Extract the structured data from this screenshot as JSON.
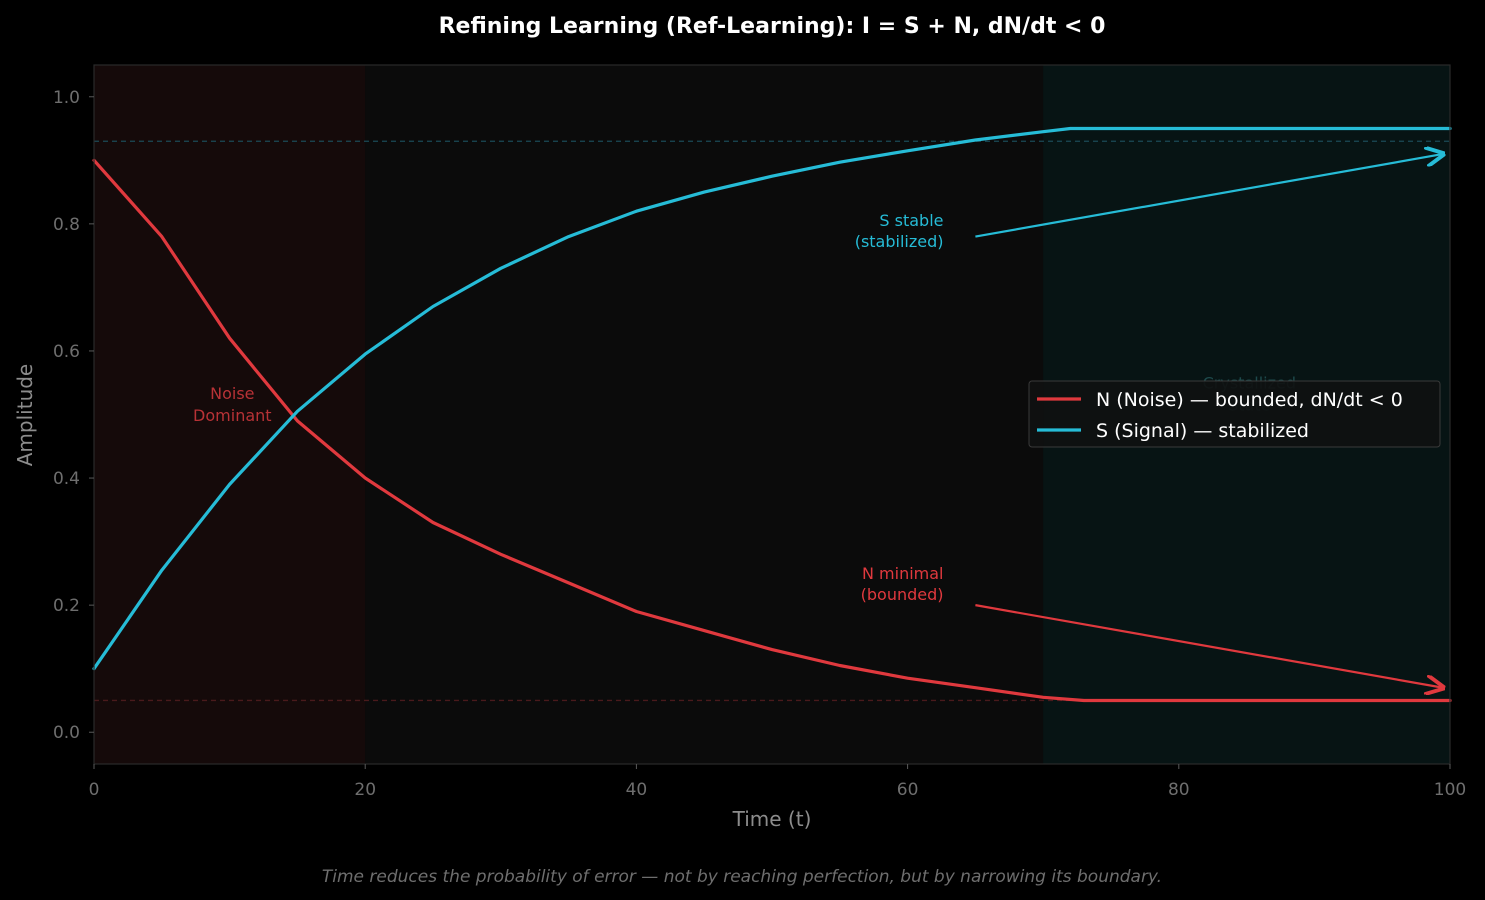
{
  "chart_data": {
    "type": "line",
    "title": "Refining Learning (Ref-Learning): I = S + N, dN/dt < 0",
    "xlabel": "Time (t)",
    "ylabel": "Amplitude",
    "xlim": [
      0,
      100
    ],
    "ylim": [
      -0.05,
      1.05
    ],
    "xticks": [
      0,
      20,
      40,
      60,
      80,
      100
    ],
    "yticks": [
      "0.0",
      "0.2",
      "0.4",
      "0.6",
      "0.8",
      "1.0"
    ],
    "grid": false,
    "legend_position": "center-right",
    "series": [
      {
        "name": "N (Noise) — bounded, dN/dt < 0",
        "color": "#e0393e",
        "x": [
          0,
          5,
          10,
          15,
          20,
          25,
          30,
          35,
          40,
          45,
          50,
          55,
          60,
          65,
          70,
          73,
          80,
          90,
          100
        ],
        "y": [
          0.9,
          0.78,
          0.62,
          0.49,
          0.4,
          0.33,
          0.28,
          0.235,
          0.19,
          0.16,
          0.13,
          0.105,
          0.085,
          0.07,
          0.055,
          0.05,
          0.05,
          0.05,
          0.05
        ]
      },
      {
        "name": "S (Signal) — stabilized",
        "color": "#26bcd7",
        "x": [
          0,
          5,
          10,
          15,
          20,
          25,
          30,
          35,
          40,
          45,
          50,
          55,
          60,
          65,
          70,
          72,
          80,
          90,
          100
        ],
        "y": [
          0.1,
          0.255,
          0.39,
          0.505,
          0.595,
          0.67,
          0.73,
          0.78,
          0.82,
          0.85,
          0.875,
          0.897,
          0.915,
          0.932,
          0.945,
          0.95,
          0.95,
          0.95,
          0.95
        ]
      }
    ],
    "reference_lines": [
      {
        "y": 0.93,
        "color": "#1b4a57",
        "style": "dashed"
      },
      {
        "y": 0.05,
        "color": "#4a1a1c",
        "style": "dashed"
      }
    ],
    "regions": [
      {
        "x0": 0,
        "x1": 20,
        "color": "#150a0a",
        "label": "Noise\nDominant",
        "label_color": "#b83236"
      },
      {
        "x0": 20,
        "x1": 70,
        "color": "#0b0b0b",
        "label": "",
        "label_color": ""
      },
      {
        "x0": 70,
        "x1": 100,
        "color": "#071414",
        "label": "Crystallized\nState",
        "label_color": "#1e4a4c"
      }
    ],
    "annotations": [
      {
        "text": "S stable\n(stabilized)",
        "color": "#26bcd7",
        "text_xy": [
          62.5,
          0.79
        ],
        "arrow_from": [
          65,
          0.78
        ],
        "arrow_to": [
          99.5,
          0.91
        ]
      },
      {
        "text": "N minimal\n(bounded)",
        "color": "#e0393e",
        "text_xy": [
          62.5,
          0.235
        ],
        "arrow_from": [
          65,
          0.2
        ],
        "arrow_to": [
          99.5,
          0.07
        ]
      }
    ],
    "footnote": "Time reduces the probability of error — not by reaching perfection, but by narrowing its boundary."
  }
}
